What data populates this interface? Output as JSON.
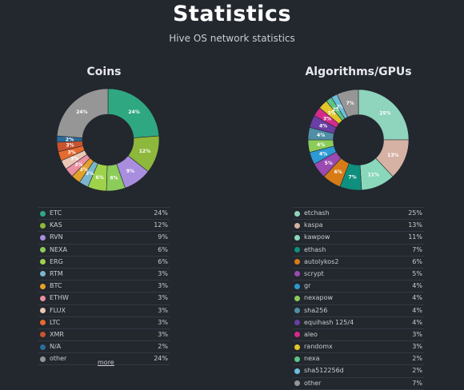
{
  "header": {
    "title": "Statistics",
    "subtitle": "Hive OS network statistics"
  },
  "coins": {
    "title": "Coins",
    "more_label": "more",
    "donut_labels": [
      "24%",
      "12%",
      "9%",
      "6%",
      "6%",
      "3%",
      "3%",
      "3%",
      "3%",
      "3%",
      "3%",
      "2%",
      "24%"
    ]
  },
  "algorithms": {
    "title": "Algorithms/GPUs",
    "donut_labels": [
      "25%",
      "13%",
      "11%",
      "7%",
      "6%",
      "5%",
      "4%",
      "4%",
      "4%",
      "4%",
      "3%",
      "3%",
      "2%",
      "2%",
      "7%"
    ]
  },
  "chart_data": [
    {
      "type": "pie",
      "title": "Coins",
      "categories": [
        "ETC",
        "KAS",
        "RVN",
        "NEXA",
        "ERG",
        "RTM",
        "BTC",
        "ETHW",
        "FLUX",
        "LTC",
        "XMR",
        "N/A",
        "other"
      ],
      "labels": [
        "24%",
        "12%",
        "9%",
        "6%",
        "6%",
        "3%",
        "3%",
        "3%",
        "3%",
        "3%",
        "3%",
        "2%",
        "24%"
      ],
      "values": [
        24,
        12,
        9,
        6,
        6,
        3,
        3,
        3,
        3,
        3,
        3,
        2,
        24
      ],
      "colors": [
        "#2fa882",
        "#8db83b",
        "#a98ee0",
        "#8ccc5a",
        "#9fd24b",
        "#7ab6cd",
        "#e3a12a",
        "#ec8fa0",
        "#ebc7b8",
        "#e66a2e",
        "#c9542f",
        "#2a6c9a",
        "#969696"
      ]
    },
    {
      "type": "pie",
      "title": "Algorithms/GPUs",
      "categories": [
        "etchash",
        "kaspa",
        "kawpow",
        "ethash",
        "autolykos2",
        "scrypt",
        "gr",
        "nexapow",
        "sha256",
        "equihash 125/4",
        "aleo",
        "randomx",
        "nexa",
        "sha512256d",
        "other"
      ],
      "labels": [
        "25%",
        "13%",
        "11%",
        "7%",
        "6%",
        "5%",
        "4%",
        "4%",
        "4%",
        "4%",
        "3%",
        "3%",
        "2%",
        "2%",
        "7%"
      ],
      "values": [
        25,
        13,
        11,
        7,
        6,
        5,
        4,
        4,
        4,
        4,
        3,
        3,
        2,
        2,
        7
      ],
      "colors": [
        "#8fd4bd",
        "#d6b2a4",
        "#8ad8bb",
        "#0f8f7e",
        "#d77b17",
        "#9a4ab0",
        "#2e9ad5",
        "#8ccd5a",
        "#4f8ea5",
        "#6a3ea3",
        "#d42a8b",
        "#e3c62a",
        "#5cc487",
        "#6cc0dc",
        "#969696"
      ]
    }
  ]
}
